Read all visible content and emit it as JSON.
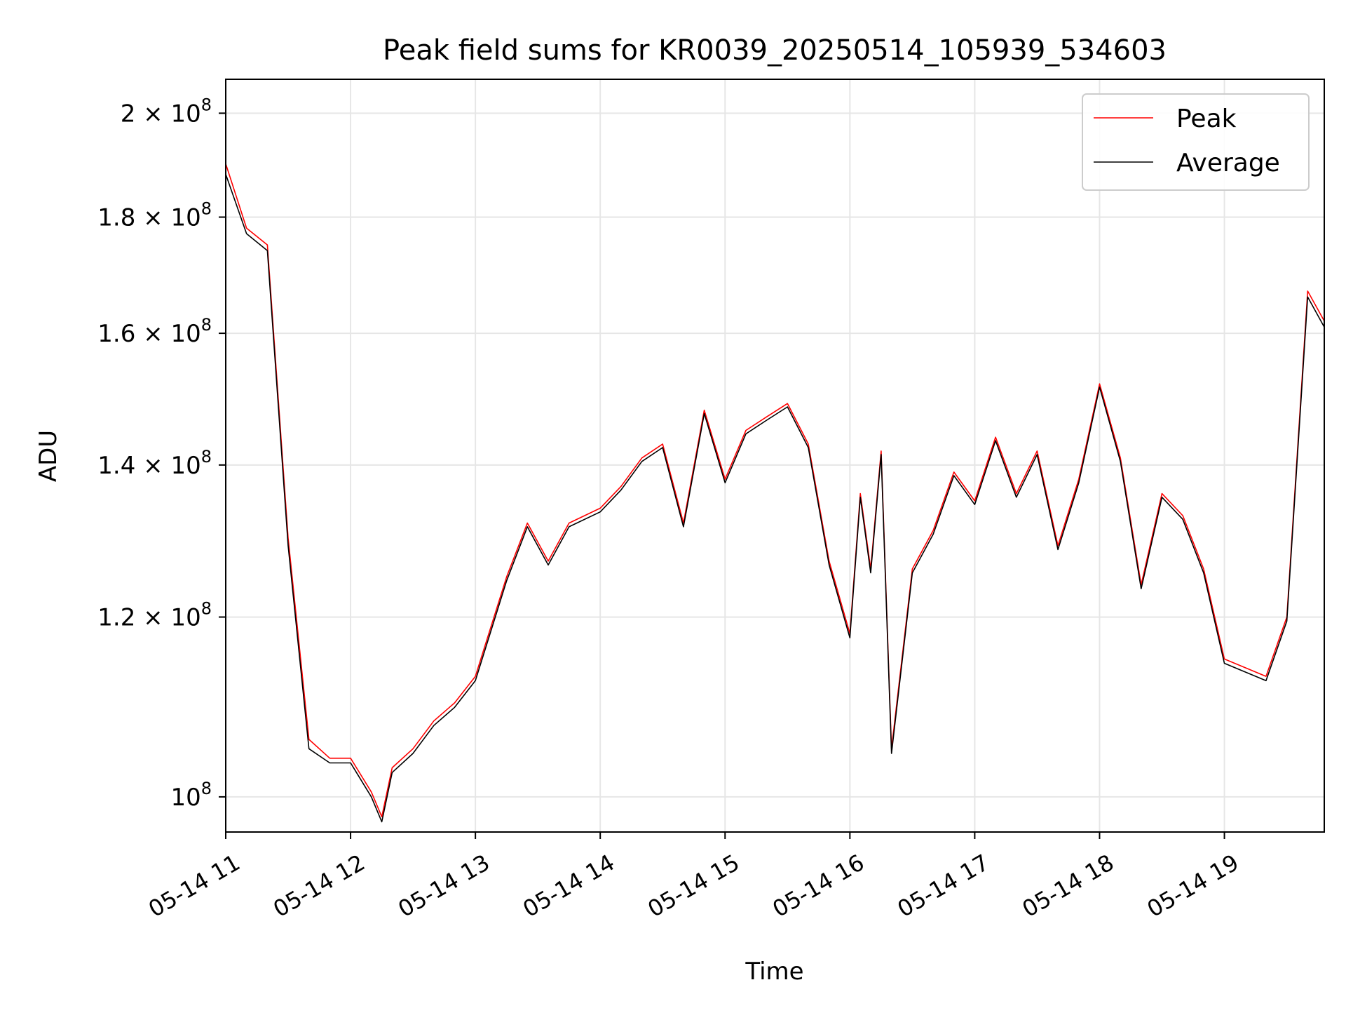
{
  "chart_data": {
    "type": "line",
    "title": "Peak field sums for KR0039_20250514_105939_534603",
    "xlabel": "Time",
    "ylabel": "ADU",
    "yscale": "log",
    "xlim": [
      "05-14 11:00",
      "05-14 19:48"
    ],
    "ylim": [
      96500000,
      207000000
    ],
    "x_ticks": [
      "05-14 11",
      "05-14 12",
      "05-14 13",
      "05-14 14",
      "05-14 15",
      "05-14 16",
      "05-14 17",
      "05-14 18",
      "05-14 19"
    ],
    "y_ticks": [
      {
        "value": 100000000,
        "mantissa": "",
        "exponent": "8"
      },
      {
        "value": 120000000,
        "mantissa": "1.2",
        "exponent": "8"
      },
      {
        "value": 140000000,
        "mantissa": "1.4",
        "exponent": "8"
      },
      {
        "value": 160000000,
        "mantissa": "1.6",
        "exponent": "8"
      },
      {
        "value": 180000000,
        "mantissa": "1.8",
        "exponent": "8"
      },
      {
        "value": 200000000,
        "mantissa": "2",
        "exponent": "8"
      }
    ],
    "grid": true,
    "legend_position": "top-right",
    "x": [
      "05-14 11:00",
      "05-14 11:10",
      "05-14 11:20",
      "05-14 11:30",
      "05-14 11:40",
      "05-14 11:50",
      "05-14 12:00",
      "05-14 12:10",
      "05-14 12:15",
      "05-14 12:20",
      "05-14 12:30",
      "05-14 12:40",
      "05-14 12:50",
      "05-14 13:00",
      "05-14 13:15",
      "05-14 13:25",
      "05-14 13:35",
      "05-14 13:45",
      "05-14 14:00",
      "05-14 14:10",
      "05-14 14:20",
      "05-14 14:30",
      "05-14 14:40",
      "05-14 14:50",
      "05-14 15:00",
      "05-14 15:10",
      "05-14 15:20",
      "05-14 15:30",
      "05-14 15:40",
      "05-14 15:50",
      "05-14 16:00",
      "05-14 16:05",
      "05-14 16:10",
      "05-14 16:15",
      "05-14 16:20",
      "05-14 16:30",
      "05-14 16:40",
      "05-14 16:50",
      "05-14 17:00",
      "05-14 17:10",
      "05-14 17:20",
      "05-14 17:30",
      "05-14 17:40",
      "05-14 17:50",
      "05-14 18:00",
      "05-14 18:10",
      "05-14 18:20",
      "05-14 18:30",
      "05-14 18:40",
      "05-14 18:50",
      "05-14 19:00",
      "05-14 19:10",
      "05-14 19:20",
      "05-14 19:30",
      "05-14 19:40",
      "05-14 19:48"
    ],
    "series": [
      {
        "name": "Peak",
        "color": "#ff0000",
        "values": [
          190000000,
          178000000,
          175000000,
          130000000,
          106000000,
          104000000,
          104000000,
          100500000,
          98000000,
          103000000,
          105000000,
          108000000,
          110000000,
          113000000,
          125000000,
          132000000,
          127000000,
          132000000,
          134000000,
          137000000,
          141000000,
          143000000,
          132000000,
          148000000,
          138000000,
          145000000,
          147000000,
          149000000,
          143000000,
          127000000,
          118000000,
          136000000,
          126000000,
          142000000,
          105000000,
          126000000,
          131000000,
          139000000,
          135000000,
          144000000,
          136000000,
          142000000,
          129000000,
          138000000,
          152000000,
          141000000,
          124000000,
          136000000,
          133000000,
          126000000,
          115000000,
          114000000,
          113000000,
          120000000,
          167000000,
          162000000
        ]
      },
      {
        "name": "Average",
        "color": "#000000",
        "values": [
          188000000,
          177000000,
          174000000,
          129000000,
          105000000,
          103500000,
          103500000,
          100000000,
          97500000,
          102500000,
          104500000,
          107500000,
          109500000,
          112500000,
          124500000,
          131500000,
          126500000,
          131500000,
          133500000,
          136500000,
          140500000,
          142500000,
          131500000,
          147500000,
          137500000,
          144500000,
          146500000,
          148500000,
          142500000,
          126500000,
          117500000,
          135500000,
          125500000,
          141500000,
          104500000,
          125500000,
          130500000,
          138500000,
          134500000,
          143500000,
          135500000,
          141500000,
          128500000,
          137500000,
          151500000,
          140500000,
          123500000,
          135500000,
          132500000,
          125500000,
          114500000,
          113500000,
          112500000,
          119500000,
          166000000,
          161000000
        ]
      }
    ]
  }
}
